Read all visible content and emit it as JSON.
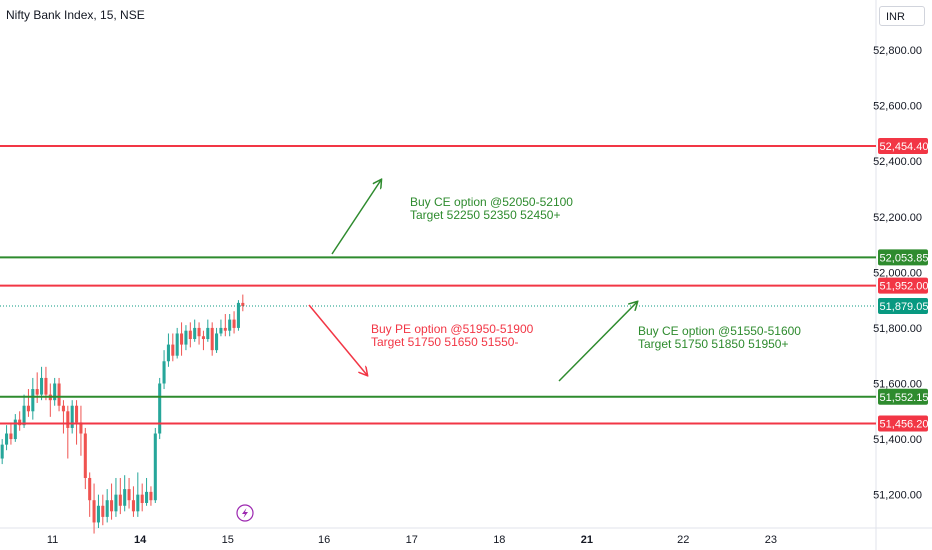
{
  "header": {
    "title": "Nifty Bank Index, 15, NSE",
    "currency": "INR"
  },
  "colors": {
    "red": "#f23645",
    "green": "#2e8b2e",
    "candle_up": "#26a69a",
    "candle_down": "#ef5350",
    "last": "#089981"
  },
  "chart_data": {
    "type": "candlestick",
    "ylim": [
      51080,
      52980
    ],
    "y_ticks": [
      {
        "value": 52800,
        "label": "52,800.00"
      },
      {
        "value": 52600,
        "label": "52,600.00"
      },
      {
        "value": 52400,
        "label": "52,400.00"
      },
      {
        "value": 52200,
        "label": "52,200.00"
      },
      {
        "value": 52000,
        "label": "52,000.00"
      },
      {
        "value": 51800,
        "label": "51,800.00"
      },
      {
        "value": 51600,
        "label": "51,600.00"
      },
      {
        "value": 51400,
        "label": "51,400.00"
      },
      {
        "value": 51200,
        "label": "51,200.00"
      }
    ],
    "x_ticks": [
      {
        "label": "11",
        "pos": 0.06,
        "bold": false
      },
      {
        "label": "14",
        "pos": 0.16,
        "bold": true
      },
      {
        "label": "15",
        "pos": 0.26,
        "bold": false
      },
      {
        "label": "16",
        "pos": 0.37,
        "bold": false
      },
      {
        "label": "17",
        "pos": 0.47,
        "bold": false
      },
      {
        "label": "18",
        "pos": 0.57,
        "bold": false
      },
      {
        "label": "21",
        "pos": 0.67,
        "bold": true
      },
      {
        "label": "22",
        "pos": 0.78,
        "bold": false
      },
      {
        "label": "23",
        "pos": 0.88,
        "bold": false
      }
    ],
    "levels": [
      {
        "value": 52454.4,
        "label": "52,454.40",
        "color": "red"
      },
      {
        "value": 52053.85,
        "label": "52,053.85",
        "color": "green"
      },
      {
        "value": 51952.0,
        "label": "51,952.00",
        "color": "red"
      },
      {
        "value": 51552.15,
        "label": "51,552.15",
        "color": "green"
      },
      {
        "value": 51456.2,
        "label": "51,456.20",
        "color": "red"
      }
    ],
    "last_price": {
      "value": 51879.05,
      "label": "51,879.05"
    },
    "candles": [
      [
        51330,
        51380,
        51310,
        51400
      ],
      [
        51380,
        51420,
        51360,
        51450
      ],
      [
        51420,
        51400,
        51380,
        51460
      ],
      [
        51400,
        51470,
        51390,
        51490
      ],
      [
        51470,
        51450,
        51430,
        51500
      ],
      [
        51450,
        51520,
        51440,
        51560
      ],
      [
        51520,
        51500,
        51480,
        51580
      ],
      [
        51500,
        51580,
        51470,
        51620
      ],
      [
        51580,
        51560,
        51530,
        51640
      ],
      [
        51560,
        51620,
        51540,
        51660
      ],
      [
        51620,
        51560,
        51540,
        51660
      ],
      [
        51560,
        51540,
        51480,
        51600
      ],
      [
        51540,
        51600,
        51520,
        51620
      ],
      [
        51600,
        51520,
        51500,
        51620
      ],
      [
        51520,
        51500,
        51420,
        51540
      ],
      [
        51500,
        51440,
        51330,
        51520
      ],
      [
        51440,
        51520,
        51420,
        51540
      ],
      [
        51520,
        51460,
        51380,
        51540
      ],
      [
        51460,
        51420,
        51340,
        51520
      ],
      [
        51420,
        51260,
        51220,
        51440
      ],
      [
        51260,
        51180,
        51120,
        51280
      ],
      [
        51180,
        51100,
        51060,
        51240
      ],
      [
        51100,
        51160,
        51080,
        51200
      ],
      [
        51160,
        51120,
        51090,
        51200
      ],
      [
        51120,
        51180,
        51100,
        51220
      ],
      [
        51180,
        51140,
        51110,
        51240
      ],
      [
        51140,
        51200,
        51120,
        51260
      ],
      [
        51200,
        51160,
        51130,
        51260
      ],
      [
        51160,
        51220,
        51140,
        51270
      ],
      [
        51220,
        51180,
        51150,
        51260
      ],
      [
        51180,
        51140,
        51120,
        51230
      ],
      [
        51140,
        51200,
        51120,
        51280
      ],
      [
        51200,
        51170,
        51140,
        51240
      ],
      [
        51170,
        51210,
        51160,
        51260
      ],
      [
        51210,
        51180,
        51160,
        51230
      ],
      [
        51180,
        51420,
        51170,
        51440
      ],
      [
        51420,
        51600,
        51400,
        51620
      ],
      [
        51600,
        51680,
        51580,
        51720
      ],
      [
        51680,
        51740,
        51660,
        51780
      ],
      [
        51740,
        51700,
        51680,
        51780
      ],
      [
        51700,
        51780,
        51690,
        51800
      ],
      [
        51780,
        51740,
        51700,
        51820
      ],
      [
        51740,
        51790,
        51720,
        51810
      ],
      [
        51790,
        51760,
        51730,
        51820
      ],
      [
        51760,
        51800,
        51750,
        51830
      ],
      [
        51800,
        51770,
        51740,
        51820
      ],
      [
        51770,
        51760,
        51720,
        51790
      ],
      [
        51760,
        51800,
        51750,
        51830
      ],
      [
        51800,
        51720,
        51700,
        51820
      ],
      [
        51720,
        51780,
        51710,
        51800
      ],
      [
        51780,
        51800,
        51770,
        51830
      ],
      [
        51800,
        51790,
        51770,
        51850
      ],
      [
        51790,
        51830,
        51770,
        51850
      ],
      [
        51830,
        51800,
        51780,
        51860
      ],
      [
        51800,
        51890,
        51790,
        51900
      ],
      [
        51890,
        51879,
        51860,
        51920
      ]
    ],
    "annotations": [
      {
        "lines": [
          "Buy CE option @52050-52100",
          "Target 52250 52350 52450+"
        ],
        "color": "green"
      },
      {
        "lines": [
          "Buy PE option @51950-51900",
          "Target 51750 51650 51550-"
        ],
        "color": "red"
      },
      {
        "lines": [
          "Buy CE option @51550-51600",
          "Target 51750 51850 51950+"
        ],
        "color": "green"
      }
    ]
  }
}
